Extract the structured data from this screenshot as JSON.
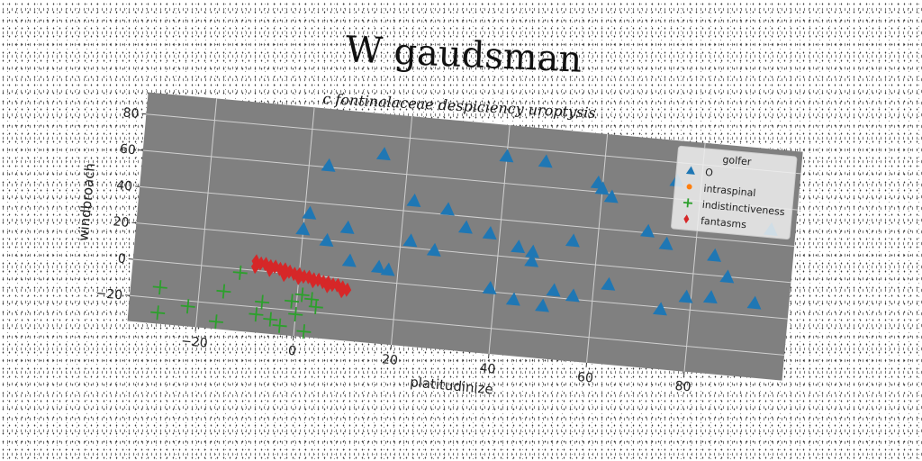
{
  "chart_data": {
    "type": "scatter",
    "title": "W gaudsman",
    "subtitle": "c fontinalaceae despiciency uroptysis",
    "xlabel": "platitudinize",
    "ylabel": "windbroach",
    "xlim": [
      -34,
      100
    ],
    "ylim": [
      -34,
      92
    ],
    "xticks": [
      -20,
      0,
      20,
      40,
      60,
      80
    ],
    "yticks": [
      -20,
      0,
      20,
      40,
      60,
      80
    ],
    "grid": true,
    "legend": {
      "title": "golfer",
      "placement": "top-right"
    },
    "series": [
      {
        "name": "O",
        "marker": "triangle",
        "color": "#1f77b4",
        "points": [
          [
            15,
            70
          ],
          [
            4,
            61
          ],
          [
            40,
            75
          ],
          [
            48,
            74
          ],
          [
            59,
            65
          ],
          [
            60,
            62
          ],
          [
            62,
            58
          ],
          [
            75,
            70
          ],
          [
            1,
            34
          ],
          [
            0,
            25
          ],
          [
            5,
            20
          ],
          [
            9,
            28
          ],
          [
            22,
            46
          ],
          [
            29,
            43
          ],
          [
            33,
            34
          ],
          [
            38,
            32
          ],
          [
            22,
            24
          ],
          [
            27,
            20
          ],
          [
            44,
            26
          ],
          [
            47,
            24
          ],
          [
            47,
            19
          ],
          [
            55,
            32
          ],
          [
            70,
            41
          ],
          [
            74,
            35
          ],
          [
            84,
            31
          ],
          [
            87,
            20
          ],
          [
            95,
            48
          ],
          [
            10,
            10
          ],
          [
            16,
            8
          ],
          [
            18,
            7
          ],
          [
            39,
            2
          ],
          [
            44,
            -3
          ],
          [
            50,
            -5
          ],
          [
            52,
            4
          ],
          [
            56,
            2
          ],
          [
            63,
            10
          ],
          [
            74,
            -1
          ],
          [
            79,
            7
          ],
          [
            84,
            8
          ],
          [
            93,
            7
          ]
        ]
      },
      {
        "name": "intraspinal",
        "marker": "circle",
        "color": "#ff7f0e",
        "points": []
      },
      {
        "name": "indistinctiveness",
        "marker": "plus",
        "color": "#2ca02c",
        "points": [
          [
            -28,
            -14
          ],
          [
            -28,
            -28
          ],
          [
            -22,
            -23
          ],
          [
            -15,
            -13
          ],
          [
            -16,
            -30
          ],
          [
            -7,
            -17
          ],
          [
            -8,
            -24
          ],
          [
            -5,
            -26
          ],
          [
            -3,
            -29
          ],
          [
            -1,
            -15
          ],
          [
            0,
            -22
          ],
          [
            1,
            -11
          ],
          [
            3,
            -13
          ],
          [
            4,
            -17
          ],
          [
            2,
            -31
          ],
          [
            -12,
            -2
          ]
        ]
      },
      {
        "name": "fantasms",
        "marker": "thin_diamond",
        "color": "#d62728",
        "points": [
          [
            -9,
            5
          ],
          [
            -8,
            4
          ],
          [
            -7,
            4
          ],
          [
            -6,
            3
          ],
          [
            -5,
            3
          ],
          [
            -4,
            2
          ],
          [
            -3,
            2
          ],
          [
            -2,
            1
          ],
          [
            -1,
            0
          ],
          [
            0,
            0
          ],
          [
            1,
            -1
          ],
          [
            2,
            -1
          ],
          [
            3,
            -2
          ],
          [
            4,
            -2
          ],
          [
            5,
            -3
          ],
          [
            6,
            -3
          ],
          [
            7,
            -4
          ],
          [
            8,
            -4
          ],
          [
            9,
            -5
          ],
          [
            10,
            -6
          ],
          [
            -9,
            2
          ],
          [
            -6,
            1
          ],
          [
            -3,
            -1
          ],
          [
            0,
            -2
          ],
          [
            3,
            -3
          ],
          [
            6,
            -5
          ],
          [
            9,
            -7
          ]
        ]
      }
    ]
  }
}
